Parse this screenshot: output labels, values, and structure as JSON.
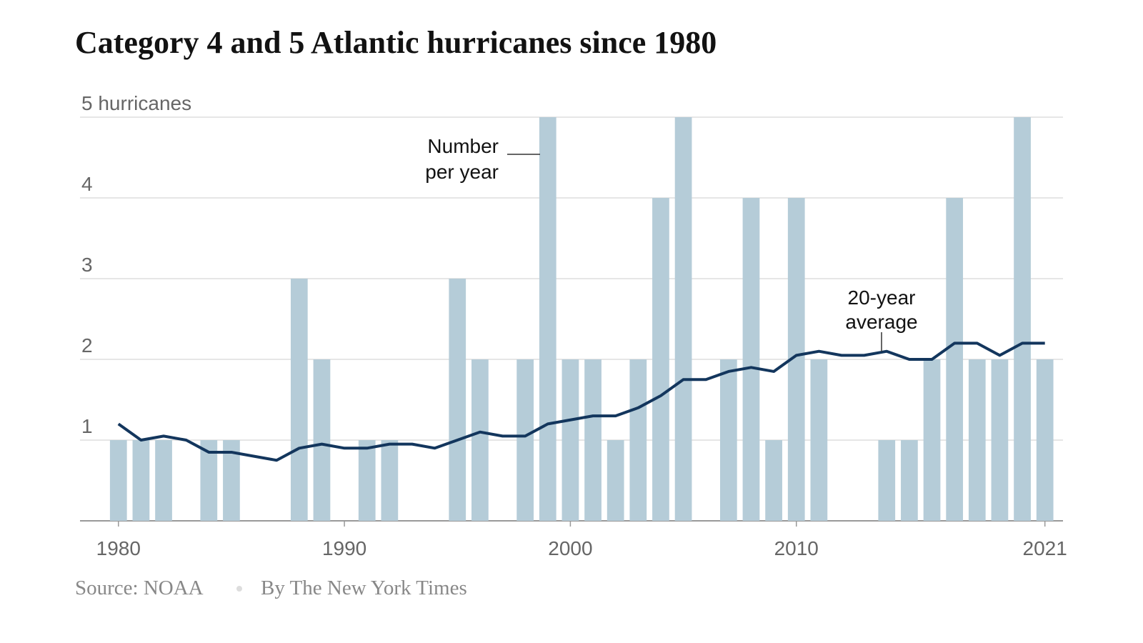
{
  "chart_data": {
    "type": "combo",
    "title": "Category 4 and 5 Atlantic hurricanes since 1980",
    "source": "Source: NOAA",
    "byline": "By The New York Times",
    "annotations": [
      [
        "Number",
        "per year"
      ],
      [
        "20-year",
        "average"
      ]
    ],
    "x": [
      1980,
      1981,
      1982,
      1983,
      1984,
      1985,
      1986,
      1987,
      1988,
      1989,
      1990,
      1991,
      1992,
      1993,
      1994,
      1995,
      1996,
      1997,
      1998,
      1999,
      2000,
      2001,
      2002,
      2003,
      2004,
      2005,
      2006,
      2007,
      2008,
      2009,
      2010,
      2011,
      2012,
      2013,
      2014,
      2015,
      2016,
      2017,
      2018,
      2019,
      2020,
      2021
    ],
    "series": [
      {
        "type": "bar",
        "color": "#b5ccd8",
        "values": [
          1,
          1,
          1,
          0,
          1,
          1,
          0,
          0,
          3,
          2,
          0,
          1,
          1,
          0,
          0,
          3,
          2,
          0,
          2,
          5,
          2,
          2,
          1,
          2,
          4,
          5,
          0,
          2,
          4,
          1,
          4,
          2,
          0,
          0,
          1,
          1,
          2,
          4,
          2,
          2,
          5,
          2
        ]
      },
      {
        "type": "line",
        "color": "#13365d",
        "values": [
          1.2,
          1.0,
          1.05,
          1.0,
          0.85,
          0.85,
          0.8,
          0.75,
          0.9,
          0.95,
          0.9,
          0.9,
          0.95,
          0.95,
          0.9,
          1.0,
          1.1,
          1.05,
          1.05,
          1.2,
          1.25,
          1.3,
          1.3,
          1.4,
          1.55,
          1.75,
          1.75,
          1.85,
          1.9,
          1.85,
          2.05,
          2.1,
          2.05,
          2.05,
          2.1,
          2.0,
          2.0,
          2.2,
          2.2,
          2.05,
          2.2,
          2.2
        ]
      }
    ],
    "xlim": [
      1978.3,
      2021.8
    ],
    "xticks": [
      1980,
      1990,
      2000,
      2010,
      2021
    ],
    "ylim": [
      0,
      5
    ],
    "yticks": [
      1,
      2,
      3,
      4,
      {
        "value": 5,
        "label": "5 hurricanes"
      }
    ],
    "grid": true
  }
}
